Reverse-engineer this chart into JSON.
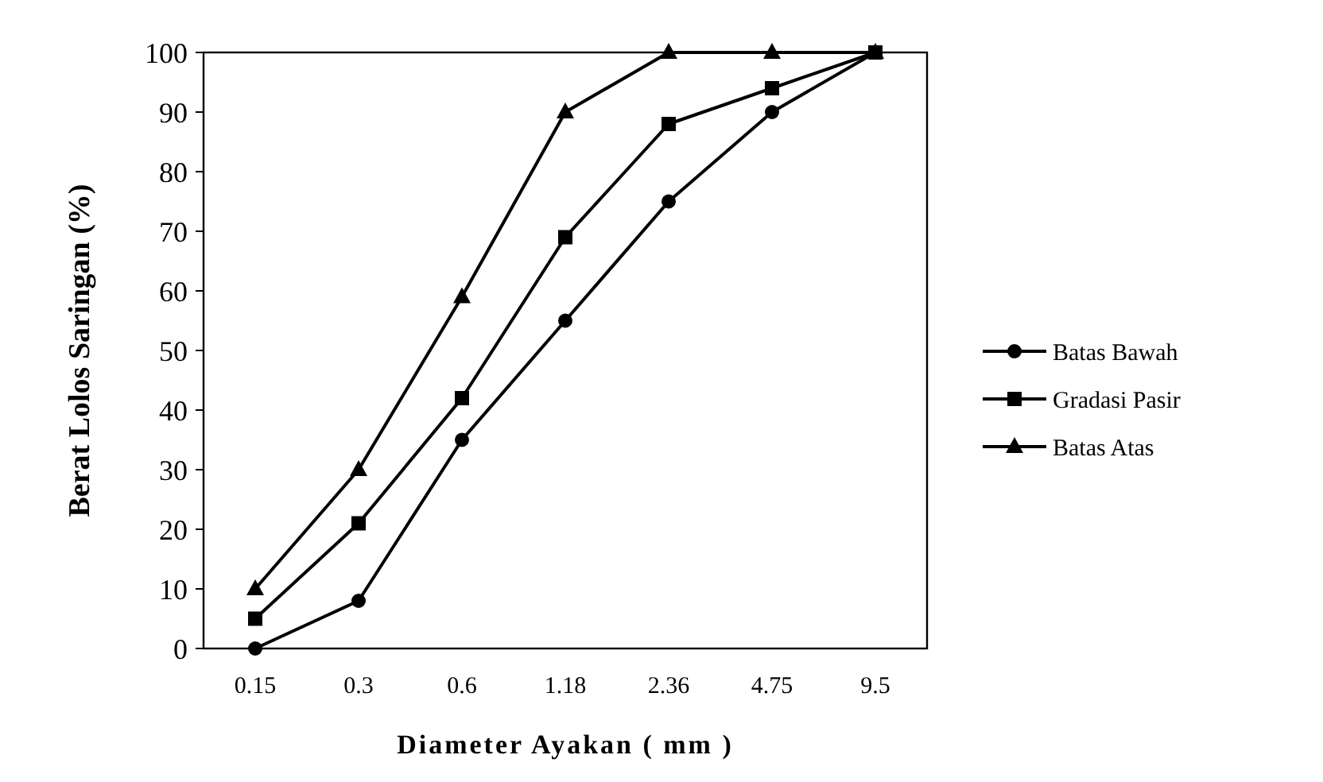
{
  "chart_data": {
    "type": "line",
    "xlabel": "Diameter Ayakan ( mm )",
    "ylabel": "Berat Lolos Saringan (%)",
    "categories": [
      "0.15",
      "0.3",
      "0.6",
      "1.18",
      "2.36",
      "4.75",
      "9.5"
    ],
    "series": [
      {
        "name": "Batas Bawah",
        "color": "#000000",
        "marker": "circle",
        "values": [
          0,
          8,
          35,
          55,
          75,
          90,
          100
        ]
      },
      {
        "name": "Gradasi Pasir",
        "color": "#000000",
        "marker": "square",
        "values": [
          5,
          21,
          42,
          69,
          88,
          94,
          100
        ]
      },
      {
        "name": "Batas Atas",
        "color": "#000000",
        "marker": "triangle",
        "values": [
          10,
          30,
          59,
          90,
          100,
          100,
          100
        ]
      }
    ],
    "ylim": [
      0,
      100
    ],
    "yticks": [
      0,
      10,
      20,
      30,
      40,
      50,
      60,
      70,
      80,
      90,
      100
    ],
    "grid": false,
    "legend": "right",
    "line_style": "solid"
  }
}
